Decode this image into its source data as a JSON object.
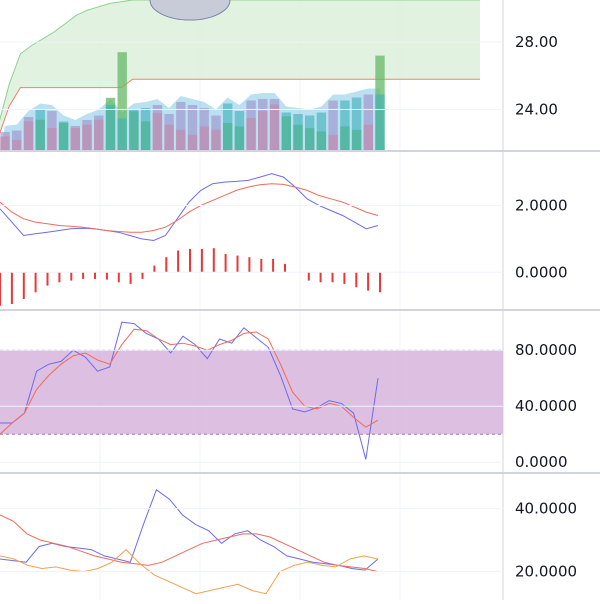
{
  "chart_data": [
    {
      "type": "bar",
      "panel": "price-volume",
      "y_ticks": [
        "28.00",
        "24.00"
      ],
      "y_tick_values": [
        28.0,
        24.0
      ],
      "ylim": [
        21.6,
        30.5
      ],
      "colors": {
        "up": "#66b866",
        "down": "#f28b8b",
        "volume": "#3aa6d9",
        "band_fill": "#d9efd9",
        "band_line": "#8ed18e",
        "band_lower": "#f08070",
        "cloud": "#c7ccd8"
      },
      "band_upper": [
        23.0,
        25.5,
        27.3,
        27.8,
        28.2,
        28.6,
        29.1,
        29.6,
        29.9,
        30.1,
        30.3,
        30.4,
        30.5,
        30.5,
        30.5,
        30.5,
        30.5,
        30.5,
        30.5,
        30.5,
        30.5,
        30.5,
        30.5,
        30.5,
        30.5,
        30.5,
        30.5,
        30.5,
        30.5,
        30.5,
        30.5,
        30.5,
        30.5,
        30.5,
        30.5,
        30.5,
        30.5,
        30.5,
        30.5,
        30.5,
        30.5,
        30.5,
        30.5,
        30.5
      ],
      "band_lower": [
        22.3,
        24.2,
        25.3,
        25.3,
        25.3,
        25.3,
        25.3,
        25.3,
        25.3,
        25.3,
        25.3,
        25.3,
        25.8,
        25.8,
        25.8,
        25.8,
        25.8,
        25.8,
        25.8,
        25.8,
        25.8,
        25.8,
        25.8,
        25.8,
        25.8,
        25.8,
        25.8,
        25.8,
        25.8,
        25.8,
        25.8,
        25.8,
        25.8,
        25.8,
        25.8,
        25.8,
        25.8,
        25.8,
        25.8,
        25.8,
        25.8,
        25.8,
        25.8,
        25.8
      ],
      "price_bars": [
        {
          "high": 22.4,
          "dir": "down"
        },
        {
          "high": 22.2,
          "dir": "down"
        },
        {
          "high": 23.3,
          "dir": "down"
        },
        {
          "high": 23.4,
          "dir": "up"
        },
        {
          "high": 22.9,
          "dir": "down"
        },
        {
          "high": 23.2,
          "dir": "up"
        },
        {
          "high": 22.9,
          "dir": "down"
        },
        {
          "high": 23.1,
          "dir": "down"
        },
        {
          "high": 23.4,
          "dir": "down"
        },
        {
          "high": 24.7,
          "dir": "up"
        },
        {
          "high": 27.4,
          "dir": "up"
        },
        {
          "high": 23.9,
          "dir": "up"
        },
        {
          "high": 23.3,
          "dir": "up"
        },
        {
          "high": 23.8,
          "dir": "down"
        },
        {
          "high": 23.1,
          "dir": "down"
        },
        {
          "high": 22.8,
          "dir": "down"
        },
        {
          "high": 22.5,
          "dir": "down"
        },
        {
          "high": 23.0,
          "dir": "down"
        },
        {
          "high": 22.8,
          "dir": "down"
        },
        {
          "high": 23.2,
          "dir": "up"
        },
        {
          "high": 23.0,
          "dir": "up"
        },
        {
          "high": 23.5,
          "dir": "down"
        },
        {
          "high": 23.9,
          "dir": "down"
        },
        {
          "high": 24.3,
          "dir": "down"
        },
        {
          "high": 23.6,
          "dir": "up"
        },
        {
          "high": 23.1,
          "dir": "up"
        },
        {
          "high": 22.9,
          "dir": "up"
        },
        {
          "high": 22.7,
          "dir": "up"
        },
        {
          "high": 22.5,
          "dir": "down"
        },
        {
          "high": 23.0,
          "dir": "up"
        },
        {
          "high": 22.8,
          "dir": "up"
        },
        {
          "high": 23.1,
          "dir": "down"
        },
        {
          "high": 27.2,
          "dir": "up"
        }
      ],
      "volume": [
        0.8,
        0.9,
        1.8,
        2.3,
        2.2,
        1.5,
        1.2,
        1.6,
        1.9,
        2.6,
        1.7,
        2.3,
        2.4,
        2.6,
        2.0,
        2.8,
        2.6,
        2.4,
        1.9,
        2.7,
        2.2,
        2.9,
        3.0,
        3.0,
        2.1,
        2.0,
        1.9,
        2.1,
        2.9,
        2.9,
        3.1,
        3.3,
        3.3
      ]
    },
    {
      "type": "line",
      "panel": "macd",
      "y_ticks": [
        "2.0000",
        "0.0000"
      ],
      "y_tick_values": [
        2.0,
        0.0
      ],
      "ylim": [
        -1.1,
        3.6
      ],
      "series": [
        {
          "color": "#6b6bf0",
          "values": [
            1.9,
            1.5,
            1.1,
            1.15,
            1.2,
            1.25,
            1.3,
            1.32,
            1.3,
            1.25,
            1.2,
            1.1,
            1.0,
            0.95,
            1.1,
            1.6,
            2.1,
            2.45,
            2.65,
            2.7,
            2.72,
            2.75,
            2.85,
            2.95,
            2.85,
            2.55,
            2.2,
            2.0,
            1.85,
            1.7,
            1.5,
            1.3,
            1.4
          ]
        },
        {
          "color": "#f06b5b",
          "values": [
            2.1,
            1.8,
            1.6,
            1.5,
            1.45,
            1.4,
            1.38,
            1.35,
            1.3,
            1.25,
            1.22,
            1.2,
            1.2,
            1.25,
            1.35,
            1.55,
            1.8,
            2.0,
            2.15,
            2.3,
            2.45,
            2.55,
            2.62,
            2.65,
            2.63,
            2.55,
            2.45,
            2.3,
            2.2,
            2.1,
            1.95,
            1.8,
            1.7
          ]
        }
      ],
      "histogram": [
        -1.0,
        -0.95,
        -0.8,
        -0.6,
        -0.4,
        -0.3,
        -0.25,
        -0.2,
        -0.2,
        -0.22,
        -0.3,
        -0.35,
        -0.2,
        0.2,
        0.45,
        0.65,
        0.7,
        0.7,
        0.72,
        0.55,
        0.5,
        0.45,
        0.4,
        0.4,
        0.25,
        0,
        -0.25,
        -0.3,
        -0.3,
        -0.35,
        -0.45,
        -0.55,
        -0.6
      ],
      "histogram_color": "#e83838"
    },
    {
      "type": "line",
      "panel": "stochastic",
      "y_ticks": [
        "80.0000",
        "40.0000",
        "0.0000"
      ],
      "y_tick_values": [
        80,
        40,
        0
      ],
      "ylim": [
        -7,
        108
      ],
      "band": [
        20,
        80
      ],
      "band_fill": "#d8b8de",
      "series": [
        {
          "color": "#6b6bf0",
          "values": [
            28,
            28,
            35,
            65,
            70,
            72,
            80,
            75,
            65,
            68,
            100,
            99,
            92,
            88,
            78,
            90,
            84,
            74,
            88,
            85,
            96,
            89,
            82,
            62,
            38,
            36,
            39,
            44,
            42,
            35,
            2,
            60
          ]
        },
        {
          "color": "#f06b5b",
          "values": [
            20,
            28,
            35,
            52,
            62,
            70,
            76,
            78,
            73,
            70,
            84,
            95,
            94,
            88,
            84,
            85,
            83,
            80,
            84,
            87,
            92,
            93,
            88,
            70,
            50,
            40,
            38,
            42,
            40,
            32,
            25,
            30
          ]
        }
      ]
    },
    {
      "type": "line",
      "panel": "dmi",
      "y_ticks": [
        "40.0000",
        "20.0000"
      ],
      "y_tick_values": [
        40,
        20
      ],
      "ylim": [
        11,
        51
      ],
      "series": [
        {
          "color": "#6b6bf0",
          "values": [
            24,
            23.5,
            23,
            28,
            29,
            28,
            27.5,
            27,
            25,
            24,
            23,
            35,
            46,
            43,
            38,
            35,
            33,
            29,
            32,
            33,
            30,
            28,
            25,
            24,
            23,
            22.5,
            22,
            21,
            20.5,
            24
          ]
        },
        {
          "color": "#f06b5b",
          "values": [
            38,
            36,
            32,
            30,
            29,
            28,
            26.5,
            25,
            24,
            23,
            22.5,
            22,
            23,
            25,
            27,
            29,
            30,
            31,
            32,
            32,
            31,
            29,
            27,
            25,
            23,
            22,
            21.5,
            21,
            20
          ]
        },
        {
          "color": "#f5a050",
          "values": [
            25,
            24,
            22,
            21,
            21.5,
            20.5,
            20,
            21,
            23,
            27,
            22.5,
            19,
            17,
            15,
            13,
            14,
            15,
            16,
            14,
            13,
            20,
            22,
            23,
            22,
            21.5,
            24,
            25,
            24
          ]
        }
      ]
    }
  ]
}
